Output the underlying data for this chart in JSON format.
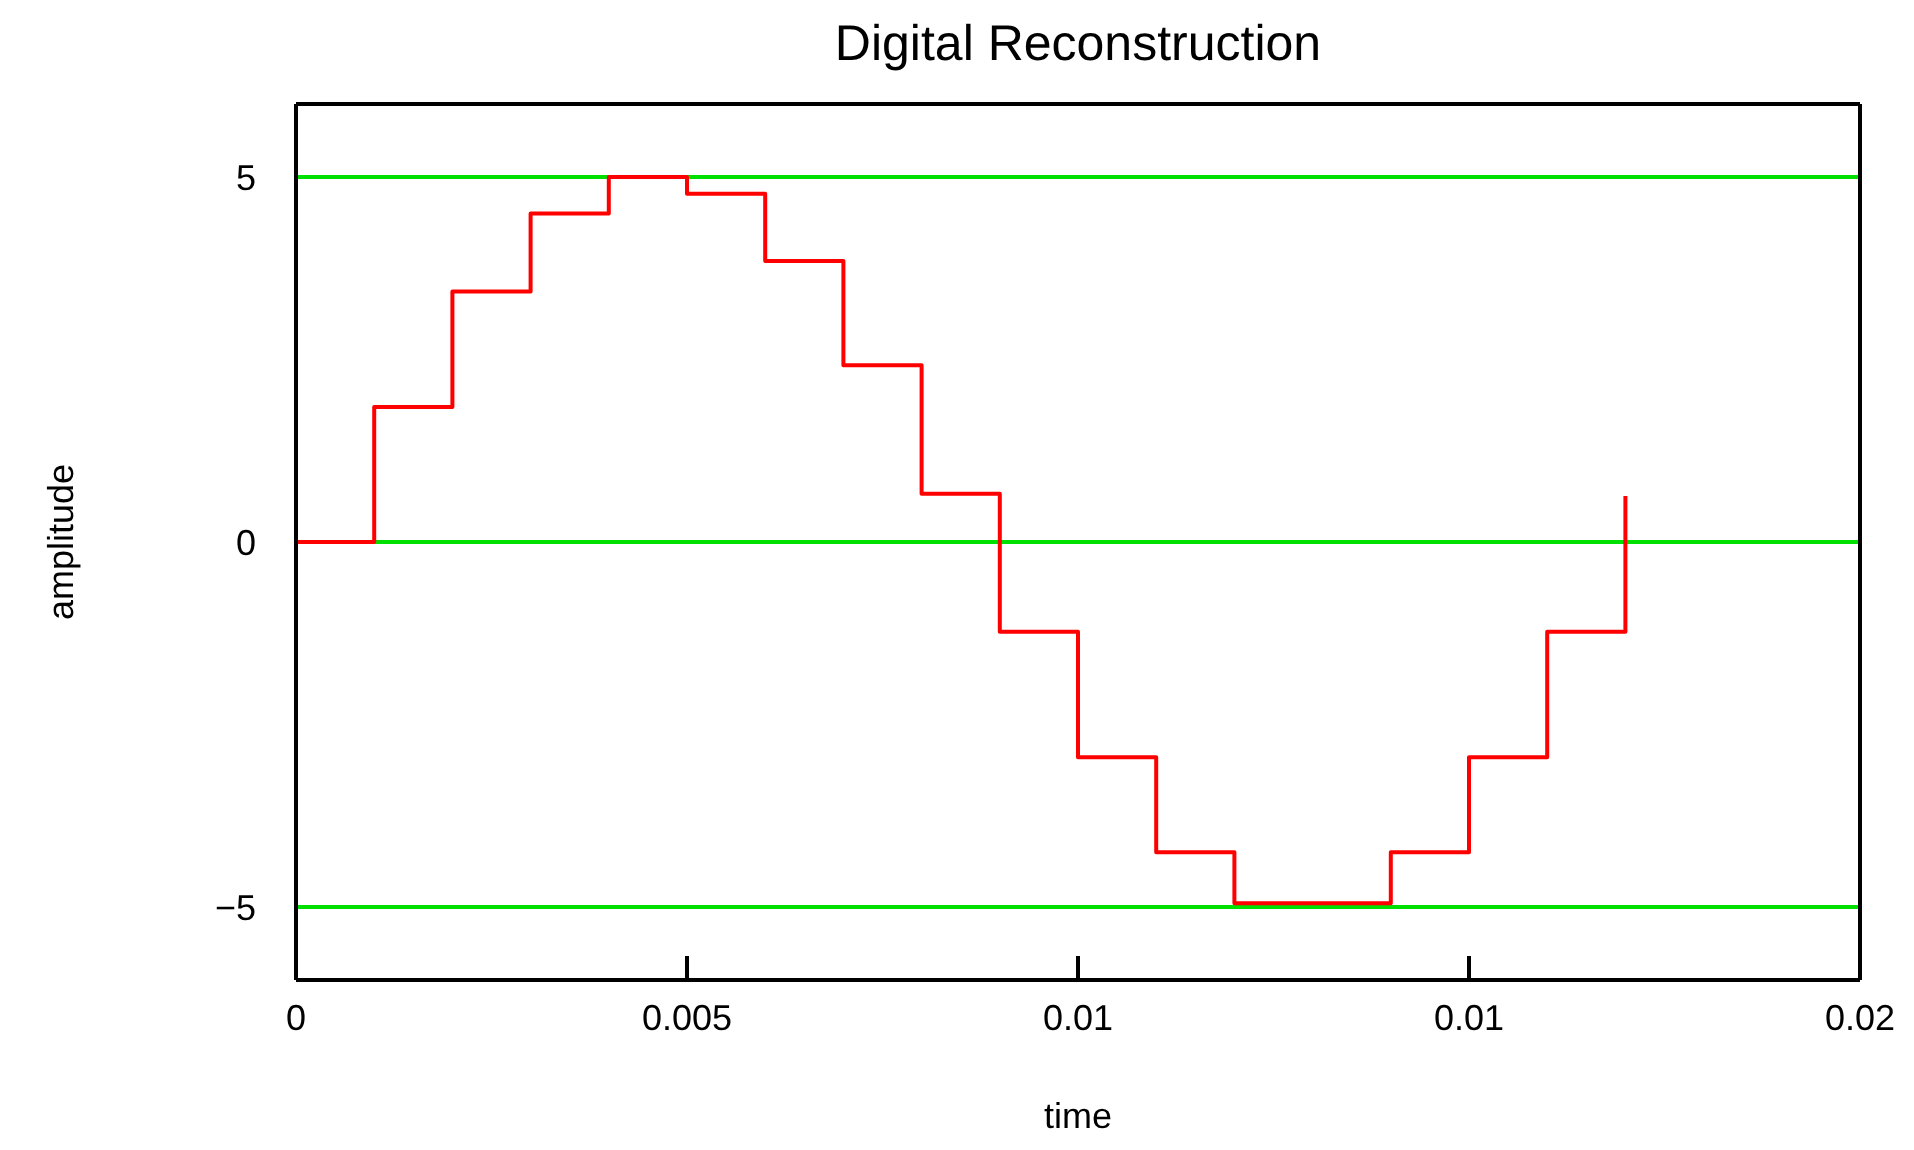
{
  "chart_data": {
    "type": "step",
    "title": "Digital Reconstruction",
    "xlabel": "time",
    "ylabel": "amplitude",
    "x": [
      0,
      0.001,
      0.002,
      0.003,
      0.004,
      0.005,
      0.006,
      0.007,
      0.008,
      0.009,
      0.01,
      0.011,
      0.012,
      0.013,
      0.014,
      0.015,
      0.016,
      0.017
    ],
    "series": [
      {
        "color": "#ff0000",
        "values": [
          0,
          1.85,
          3.43,
          4.5,
          5,
          4.77,
          3.85,
          2.42,
          0.66,
          -1.23,
          -2.95,
          -4.25,
          -4.95,
          -4.95,
          -4.25,
          -2.95,
          -1.23,
          0.63
        ]
      }
    ],
    "xlim": [
      0,
      0.02
    ],
    "xticks": [
      0,
      0.005,
      0.01,
      {
        "value": 0.015,
        "label": "0.01"
      },
      0.02
    ],
    "ylim": [
      -6,
      6
    ],
    "yticks": [
      -5,
      0,
      5
    ],
    "grid": "y",
    "marker": "none",
    "line_style": "solid"
  }
}
